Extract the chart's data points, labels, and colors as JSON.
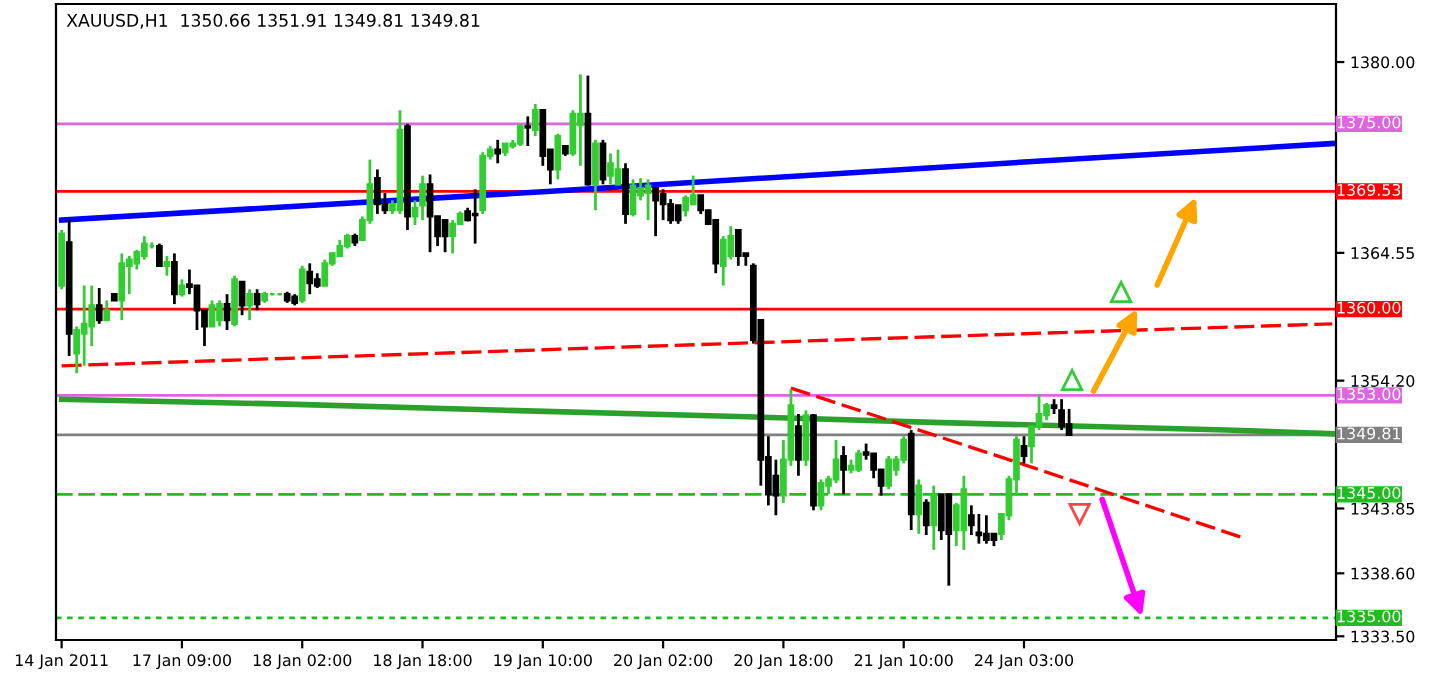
{
  "chart_data": {
    "type": "candlestick",
    "title": "XAUUSD,H1  1350.66 1351.91 1349.81 1349.81",
    "categories": [
      "14 Jan 2011",
      null,
      null,
      null,
      null,
      null,
      null,
      null,
      null,
      null,
      null,
      null,
      null,
      null,
      null,
      null,
      "17 Jan 09:00",
      null,
      null,
      null,
      null,
      null,
      null,
      null,
      null,
      null,
      null,
      null,
      null,
      null,
      null,
      null,
      "18 Jan 02:00",
      null,
      null,
      null,
      null,
      null,
      null,
      null,
      null,
      null,
      null,
      null,
      null,
      null,
      null,
      null,
      "18 Jan 18:00",
      null,
      null,
      null,
      null,
      null,
      null,
      null,
      null,
      null,
      null,
      null,
      null,
      null,
      null,
      null,
      "19 Jan 10:00",
      null,
      null,
      null,
      null,
      null,
      null,
      null,
      null,
      null,
      null,
      null,
      null,
      null,
      null,
      null,
      "20 Jan 02:00",
      null,
      null,
      null,
      null,
      null,
      null,
      null,
      null,
      null,
      null,
      null,
      null,
      null,
      null,
      null,
      "20 Jan 18:00",
      null,
      null,
      null,
      null,
      null,
      null,
      null,
      null,
      null,
      null,
      null,
      null,
      null,
      null,
      null,
      "21 Jan 10:00",
      null,
      null,
      null,
      null,
      null,
      null,
      null,
      null,
      null,
      null,
      null,
      null,
      null,
      null,
      null,
      "24 Jan 03:00",
      null,
      null,
      null,
      null,
      null,
      null,
      null,
      null,
      null,
      null,
      null,
      null,
      null,
      null,
      null,
      null,
      null,
      null,
      null,
      null,
      null,
      null,
      null,
      null,
      null,
      null,
      null,
      null,
      null,
      null,
      null,
      null,
      null,
      null,
      null,
      null,
      null,
      null,
      null,
      null,
      null
    ],
    "ohlc": [
      [
        1361.9,
        1366.4,
        1361.6,
        1366.1
      ],
      [
        1365.4,
        1367.2,
        1356.2,
        1358.0
      ],
      [
        1356.4,
        1358.6,
        1354.8,
        1358.3
      ],
      [
        1358.0,
        1361.9,
        1355.4,
        1358.8
      ],
      [
        1358.6,
        1361.9,
        1357.0,
        1360.3
      ],
      [
        1360.3,
        1361.7,
        1358.8,
        1359.1
      ],
      [
        1359.1,
        1360.7,
        1359.1,
        1359.9
      ],
      [
        1361.2,
        1361.2,
        1360.7,
        1360.7
      ],
      [
        1360.7,
        1364.5,
        1359.1,
        1363.7
      ],
      [
        1363.5,
        1364.3,
        1361.2,
        1364.0
      ],
      [
        1363.7,
        1364.8,
        1363.2,
        1364.6
      ],
      [
        1364.3,
        1365.9,
        1364.0,
        1365.3
      ],
      [
        1365.1,
        1365.4,
        1364.9,
        1365.1
      ],
      [
        1365.1,
        1365.3,
        1363.5,
        1363.5
      ],
      [
        1363.5,
        1364.3,
        1362.7,
        1363.8
      ],
      [
        1363.8,
        1364.5,
        1360.4,
        1361.2
      ],
      [
        1361.2,
        1362.4,
        1361.0,
        1361.9
      ],
      [
        1362.0,
        1363.2,
        1361.2,
        1361.8
      ],
      [
        1361.9,
        1361.9,
        1358.3,
        1359.9
      ],
      [
        1359.9,
        1359.9,
        1357.0,
        1358.6
      ],
      [
        1358.6,
        1360.7,
        1358.6,
        1360.3
      ],
      [
        1359.1,
        1360.7,
        1358.6,
        1360.4
      ],
      [
        1360.4,
        1361.2,
        1358.3,
        1359.1
      ],
      [
        1358.8,
        1362.7,
        1358.6,
        1362.4
      ],
      [
        1362.2,
        1362.2,
        1359.5,
        1360.3
      ],
      [
        1360.3,
        1361.6,
        1359.1,
        1361.2
      ],
      [
        1361.2,
        1361.6,
        1359.9,
        1360.4
      ],
      [
        1360.7,
        1361.4,
        1360.5,
        1361.2
      ],
      [
        1361.2,
        1361.3,
        1361.1,
        1361.2
      ],
      [
        1361.2,
        1361.3,
        1361.1,
        1361.2
      ],
      [
        1361.2,
        1361.4,
        1360.5,
        1360.7
      ],
      [
        1361.0,
        1361.2,
        1360.3,
        1360.5
      ],
      [
        1360.7,
        1363.5,
        1360.5,
        1363.2
      ],
      [
        1363.0,
        1363.7,
        1361.2,
        1362.1
      ],
      [
        1362.4,
        1362.9,
        1361.7,
        1361.9
      ],
      [
        1361.9,
        1364.0,
        1361.9,
        1363.7
      ],
      [
        1363.7,
        1364.6,
        1363.5,
        1364.5
      ],
      [
        1364.3,
        1365.6,
        1364.2,
        1365.1
      ],
      [
        1365.1,
        1366.1,
        1364.9,
        1365.9
      ],
      [
        1365.9,
        1366.1,
        1365.1,
        1365.4
      ],
      [
        1365.6,
        1367.5,
        1365.6,
        1367.2
      ],
      [
        1367.2,
        1372.1,
        1366.9,
        1370.1
      ],
      [
        1370.6,
        1371.3,
        1367.7,
        1368.5
      ],
      [
        1368.5,
        1369.4,
        1367.7,
        1368.0
      ],
      [
        1368.0,
        1368.8,
        1367.7,
        1368.5
      ],
      [
        1368.0,
        1376.1,
        1367.7,
        1374.5
      ],
      [
        1374.8,
        1375.0,
        1366.4,
        1367.5
      ],
      [
        1367.5,
        1368.8,
        1366.8,
        1368.2
      ],
      [
        1368.4,
        1370.8,
        1367.2,
        1370.1
      ],
      [
        1370.1,
        1370.9,
        1364.6,
        1367.5
      ],
      [
        1367.5,
        1367.5,
        1365.1,
        1365.9
      ],
      [
        1367.2,
        1367.2,
        1364.6,
        1365.9
      ],
      [
        1365.9,
        1367.2,
        1364.5,
        1366.9
      ],
      [
        1366.9,
        1367.9,
        1366.8,
        1367.7
      ],
      [
        1367.9,
        1368.2,
        1367.1,
        1367.2
      ],
      [
        1367.7,
        1369.7,
        1365.3,
        1367.6
      ],
      [
        1368.0,
        1372.7,
        1367.7,
        1372.4
      ],
      [
        1372.4,
        1373.2,
        1372.1,
        1372.9
      ],
      [
        1372.9,
        1373.7,
        1371.8,
        1372.6
      ],
      [
        1372.7,
        1373.4,
        1372.4,
        1373.4
      ],
      [
        1373.2,
        1373.7,
        1373.0,
        1373.4
      ],
      [
        1373.4,
        1375.0,
        1373.2,
        1374.8
      ],
      [
        1374.8,
        1375.6,
        1373.2,
        1374.7
      ],
      [
        1374.5,
        1376.6,
        1374.0,
        1376.1
      ],
      [
        1376.1,
        1376.1,
        1371.6,
        1372.4
      ],
      [
        1372.9,
        1372.9,
        1370.1,
        1371.3
      ],
      [
        1371.3,
        1374.2,
        1370.5,
        1374.0
      ],
      [
        1373.2,
        1373.2,
        1372.4,
        1372.6
      ],
      [
        1372.6,
        1376.1,
        1372.4,
        1375.8
      ],
      [
        1374.9,
        1379.0,
        1371.6,
        1375.8
      ],
      [
        1375.8,
        1378.9,
        1370.0,
        1370.1
      ],
      [
        1370.1,
        1373.7,
        1368.0,
        1373.4
      ],
      [
        1373.4,
        1373.7,
        1370.1,
        1370.5
      ],
      [
        1370.8,
        1372.6,
        1370.1,
        1371.8
      ],
      [
        1370.1,
        1372.9,
        1370.0,
        1371.3
      ],
      [
        1371.3,
        1371.8,
        1366.9,
        1367.7
      ],
      [
        1367.7,
        1370.5,
        1367.5,
        1370.0
      ],
      [
        1369.2,
        1370.6,
        1368.8,
        1369.8
      ],
      [
        1369.4,
        1370.5,
        1367.2,
        1370.0
      ],
      [
        1369.8,
        1369.8,
        1365.9,
        1368.8
      ],
      [
        1369.3,
        1369.7,
        1367.2,
        1368.5
      ],
      [
        1368.5,
        1368.9,
        1366.9,
        1367.2
      ],
      [
        1368.4,
        1368.4,
        1366.9,
        1367.2
      ],
      [
        1368.0,
        1369.2,
        1367.5,
        1369.0
      ],
      [
        1368.5,
        1370.8,
        1368.4,
        1369.2
      ],
      [
        1369.2,
        1369.2,
        1367.7,
        1368.0
      ],
      [
        1368.0,
        1368.0,
        1366.8,
        1366.9
      ],
      [
        1367.2,
        1367.2,
        1362.9,
        1363.7
      ],
      [
        1363.5,
        1365.9,
        1361.9,
        1365.6
      ],
      [
        1364.3,
        1366.7,
        1364.0,
        1365.9
      ],
      [
        1366.4,
        1366.4,
        1363.5,
        1364.3
      ],
      [
        1364.5,
        1364.5,
        1363.5,
        1364.3
      ],
      [
        1363.5,
        1363.7,
        1357.2,
        1357.5
      ],
      [
        1359.1,
        1359.1,
        1345.7,
        1347.8
      ],
      [
        1348.0,
        1349.7,
        1344.1,
        1345.0
      ],
      [
        1346.5,
        1347.8,
        1343.3,
        1344.9
      ],
      [
        1344.9,
        1349.4,
        1344.3,
        1347.8
      ],
      [
        1347.8,
        1353.5,
        1347.3,
        1352.2
      ],
      [
        1350.5,
        1351.5,
        1346.5,
        1347.8
      ],
      [
        1347.8,
        1351.8,
        1347.3,
        1351.4
      ],
      [
        1351.4,
        1351.5,
        1343.7,
        1344.1
      ],
      [
        1344.1,
        1346.2,
        1343.7,
        1345.9
      ],
      [
        1345.7,
        1346.5,
        1345.0,
        1346.2
      ],
      [
        1346.2,
        1349.4,
        1345.9,
        1347.8
      ],
      [
        1348.1,
        1348.9,
        1345.0,
        1347.0
      ],
      [
        1347.0,
        1347.8,
        1346.7,
        1347.3
      ],
      [
        1347.0,
        1348.6,
        1346.8,
        1348.3
      ],
      [
        1348.4,
        1349.1,
        1347.8,
        1348.2
      ],
      [
        1348.3,
        1348.3,
        1346.3,
        1347.0
      ],
      [
        1347.0,
        1347.0,
        1344.9,
        1345.7
      ],
      [
        1345.7,
        1348.1,
        1345.4,
        1347.8
      ],
      [
        1347.0,
        1348.1,
        1346.5,
        1347.8
      ],
      [
        1347.8,
        1349.7,
        1347.5,
        1349.4
      ],
      [
        1349.9,
        1350.2,
        1342.1,
        1343.4
      ],
      [
        1343.4,
        1346.2,
        1341.8,
        1345.7
      ],
      [
        1344.3,
        1344.6,
        1341.7,
        1342.5
      ],
      [
        1342.5,
        1345.7,
        1340.5,
        1345.0
      ],
      [
        1345.0,
        1345.0,
        1341.3,
        1342.1
      ],
      [
        1345.0,
        1345.0,
        1337.6,
        1341.8
      ],
      [
        1342.1,
        1344.3,
        1340.8,
        1344.1
      ],
      [
        1342.1,
        1346.5,
        1340.5,
        1345.4
      ],
      [
        1343.3,
        1344.1,
        1341.7,
        1342.5
      ],
      [
        1341.9,
        1343.4,
        1341.0,
        1341.7
      ],
      [
        1341.8,
        1343.3,
        1341.0,
        1341.3
      ],
      [
        1341.8,
        1341.8,
        1340.8,
        1341.3
      ],
      [
        1341.8,
        1343.4,
        1341.3,
        1343.4
      ],
      [
        1343.3,
        1346.5,
        1342.9,
        1346.2
      ],
      [
        1346.2,
        1349.7,
        1344.9,
        1349.4
      ],
      [
        1348.9,
        1349.7,
        1347.5,
        1348.1
      ],
      [
        1348.9,
        1350.5,
        1347.5,
        1350.5
      ],
      [
        1350.5,
        1353.1,
        1350.2,
        1351.5
      ],
      [
        1351.4,
        1352.4,
        1351.0,
        1352.2
      ],
      [
        1352.2,
        1352.7,
        1351.5,
        1352.0
      ],
      [
        1351.8,
        1352.7,
        1350.2,
        1350.5
      ],
      [
        1350.66,
        1351.91,
        1349.81,
        1349.81
      ],
      null,
      null,
      null,
      null,
      null,
      null,
      null,
      null,
      null,
      null,
      null,
      null,
      null,
      null,
      null,
      null,
      null,
      null,
      null,
      null,
      null,
      null,
      null,
      null,
      null,
      null,
      null,
      null,
      null,
      null,
      null,
      null,
      null,
      null,
      null
    ],
    "colors": [
      "#33cc33",
      "#000000",
      "#33cc33",
      "#33cc33",
      "#33cc33",
      "#000000",
      "#33cc33",
      "#000000",
      "#33cc33",
      "#33cc33",
      "#33cc33",
      "#33cc33",
      "#33cc33",
      "#000000",
      "#33cc33",
      "#000000",
      "#33cc33",
      "#000000",
      "#000000",
      "#000000",
      "#33cc33",
      "#33cc33",
      "#000000",
      "#33cc33",
      "#000000",
      "#33cc33",
      "#000000",
      "#33cc33",
      "#33cc33",
      "#33cc33",
      "#000000",
      "#000000",
      "#33cc33",
      "#000000",
      "#000000",
      "#33cc33",
      "#33cc33",
      "#33cc33",
      "#33cc33",
      "#000000",
      "#33cc33",
      "#33cc33",
      "#000000",
      "#000000",
      "#33cc33",
      "#33cc33",
      "#000000",
      "#33cc33",
      "#33cc33",
      "#000000",
      "#000000",
      "#000000",
      "#33cc33",
      "#33cc33",
      "#000000",
      "#000000",
      "#33cc33",
      "#33cc33",
      "#000000",
      "#33cc33",
      "#33cc33",
      "#33cc33",
      "#000000",
      "#33cc33",
      "#000000",
      "#000000",
      "#33cc33",
      "#000000",
      "#33cc33",
      "#33cc33",
      "#000000",
      "#33cc33",
      "#000000",
      "#33cc33",
      "#33cc33",
      "#000000",
      "#33cc33",
      "#33cc33",
      "#33cc33",
      "#000000",
      "#000000",
      "#000000",
      "#000000",
      "#33cc33",
      "#33cc33",
      "#000000",
      "#000000",
      "#000000",
      "#33cc33",
      "#33cc33",
      "#000000",
      "#000000",
      "#000000",
      "#000000",
      "#000000",
      "#000000",
      "#33cc33",
      "#33cc33",
      "#000000",
      "#33cc33",
      "#000000",
      "#33cc33",
      "#33cc33",
      "#33cc33",
      "#000000",
      "#33cc33",
      "#33cc33",
      "#000000",
      "#000000",
      "#000000",
      "#33cc33",
      "#33cc33",
      "#33cc33",
      "#000000",
      "#33cc33",
      "#000000",
      "#33cc33",
      "#000000",
      "#000000",
      "#33cc33",
      "#33cc33",
      "#000000",
      "#000000",
      "#000000",
      "#000000",
      "#33cc33",
      "#33cc33",
      "#33cc33",
      "#000000",
      "#33cc33",
      "#33cc33",
      "#33cc33",
      "#000000",
      "#000000",
      "#000000",
      null,
      null,
      null,
      null,
      null,
      null,
      null,
      null,
      null,
      null,
      null,
      null,
      null,
      null,
      null,
      null,
      null,
      null,
      null,
      null,
      null,
      null,
      null,
      null,
      null,
      null,
      null,
      null,
      null,
      null,
      null,
      null,
      null,
      null,
      null
    ],
    "series": [
      {
        "type": "line",
        "color": "#2ca02c",
        "line_style": "solid",
        "values": [
          1352.7,
          null,
          null,
          null,
          null,
          null,
          null,
          null,
          null,
          null,
          null,
          null,
          null,
          null,
          null,
          null,
          null,
          null,
          null,
          null,
          null,
          null,
          null,
          null,
          null,
          null,
          null,
          null,
          null,
          null,
          1352.3,
          null,
          null,
          null,
          null,
          null,
          null,
          null,
          null,
          null,
          null,
          null,
          null,
          null,
          null,
          null,
          null,
          null,
          null,
          null,
          null,
          null,
          null,
          null,
          null,
          null,
          null,
          null,
          null,
          1351.8,
          null,
          null,
          null,
          null,
          null,
          null,
          null,
          null,
          null,
          null,
          null,
          null,
          null,
          null,
          null,
          null,
          null,
          null,
          null,
          null,
          null,
          null,
          null,
          null,
          null,
          null,
          null,
          null,
          null,
          null,
          1351.3,
          null,
          null,
          null,
          null,
          null,
          null,
          null,
          null,
          null,
          null,
          null,
          null,
          null,
          null,
          null,
          null,
          null,
          null,
          null,
          null,
          null,
          null,
          null,
          null,
          null,
          null,
          1350.8,
          null,
          null,
          null,
          null,
          null,
          null,
          null,
          null,
          null,
          null,
          null,
          null,
          null,
          null,
          null,
          null,
          null,
          null,
          null,
          null,
          null,
          null,
          null,
          null,
          null,
          null,
          null,
          null,
          null,
          null,
          null,
          null,
          null,
          null,
          null,
          null,
          null,
          1350.2,
          null,
          null,
          null,
          null,
          null,
          null,
          null,
          null,
          null,
          null,
          null,
          null,
          null,
          1349.9
        ]
      },
      {
        "type": "line",
        "color": "#0000ff",
        "line_style": "solid",
        "values": [
          1367.2,
          null,
          null,
          null,
          null,
          null,
          null,
          null,
          null,
          null,
          null,
          null,
          null,
          null,
          null,
          null,
          null,
          null,
          null,
          null,
          null,
          null,
          null,
          null,
          null,
          null,
          null,
          null,
          null,
          null,
          null,
          null,
          null,
          null,
          null,
          null,
          null,
          null,
          null,
          null,
          null,
          null,
          null,
          null,
          null,
          null,
          null,
          null,
          null,
          null,
          null,
          null,
          null,
          null,
          null,
          null,
          null,
          null,
          null,
          null,
          null,
          null,
          null,
          null,
          1369.5,
          null,
          null,
          null,
          null,
          null,
          null,
          null,
          null,
          null,
          null,
          null,
          null,
          null,
          null,
          null,
          null,
          null,
          null,
          null,
          null,
          null,
          null,
          null,
          null,
          null,
          null,
          null,
          null,
          null,
          null,
          null,
          null,
          null,
          null,
          null,
          null,
          null,
          null,
          null,
          null,
          null,
          null,
          null,
          null,
          null,
          null,
          null,
          null,
          null,
          null,
          null,
          null,
          null,
          null,
          null,
          null,
          null,
          null,
          null,
          null,
          null,
          null,
          null,
          1371.9,
          null,
          null,
          null,
          null,
          null,
          null,
          null,
          null,
          null,
          null,
          null,
          null,
          null,
          null,
          null,
          null,
          null,
          null,
          null,
          null,
          null,
          null,
          null,
          null,
          null,
          null,
          null,
          null,
          null,
          null,
          null,
          null,
          null,
          null,
          null,
          null,
          null,
          null,
          null,
          null,
          1373.4
        ]
      },
      {
        "type": "line",
        "color": "#ff0000",
        "line_style": "dashed",
        "values": [
          1355.4,
          null,
          null,
          null,
          null,
          null,
          null,
          null,
          null,
          null,
          null,
          null,
          null,
          null,
          null,
          null,
          null,
          null,
          null,
          null,
          null,
          null,
          null,
          null,
          null,
          null,
          null,
          null,
          null,
          null,
          null,
          null,
          null,
          null,
          null,
          null,
          null,
          null,
          null,
          null,
          null,
          null,
          null,
          null,
          null,
          null,
          null,
          null,
          null,
          null,
          null,
          null,
          null,
          null,
          null,
          null,
          null,
          null,
          null,
          null,
          null,
          null,
          null,
          null,
          1356.7,
          null,
          null,
          null,
          null,
          null,
          null,
          null,
          null,
          null,
          null,
          null,
          null,
          null,
          null,
          null,
          null,
          null,
          null,
          null,
          null,
          null,
          null,
          null,
          null,
          null,
          null,
          null,
          null,
          null,
          null,
          null,
          null,
          null,
          null,
          null,
          null,
          null,
          null,
          null,
          null,
          null,
          null,
          null,
          null,
          null,
          null,
          null,
          null,
          null,
          null,
          null,
          null,
          null,
          null,
          null,
          null,
          null,
          null,
          null,
          null,
          null,
          null,
          null,
          1358.0,
          null,
          null,
          null,
          null,
          null,
          null,
          null,
          null,
          null,
          null,
          null,
          null,
          null,
          null,
          null,
          null,
          null,
          null,
          null,
          null,
          null,
          null,
          null,
          null,
          null,
          null,
          null,
          null,
          null,
          null,
          null,
          null,
          null,
          null,
          null,
          null,
          null,
          null,
          null,
          null,
          1358.8
        ]
      },
      {
        "type": "line",
        "color": "#ff0000",
        "line_style": "dashed",
        "values": [
          null,
          null,
          null,
          null,
          null,
          null,
          null,
          null,
          null,
          null,
          null,
          null,
          null,
          null,
          null,
          null,
          null,
          null,
          null,
          null,
          null,
          null,
          null,
          null,
          null,
          null,
          null,
          null,
          null,
          null,
          null,
          null,
          null,
          null,
          null,
          null,
          null,
          null,
          null,
          null,
          null,
          null,
          null,
          null,
          null,
          null,
          null,
          null,
          null,
          null,
          null,
          null,
          null,
          null,
          null,
          null,
          null,
          null,
          null,
          null,
          null,
          null,
          null,
          null,
          null,
          null,
          null,
          null,
          null,
          null,
          null,
          null,
          null,
          null,
          null,
          null,
          null,
          null,
          null,
          null,
          null,
          null,
          null,
          null,
          null,
          null,
          null,
          null,
          null,
          null,
          null,
          null,
          null,
          null,
          null,
          null,
          null,
          1353.6,
          null,
          null,
          null,
          null,
          null,
          null,
          null,
          null,
          null,
          null,
          null,
          null,
          null,
          null,
          null,
          null,
          null,
          null,
          null,
          null,
          null,
          null,
          null,
          null,
          null,
          null,
          null,
          null,
          null,
          null,
          null,
          1347.2,
          null,
          null,
          null,
          null,
          null,
          null,
          null,
          null,
          null,
          null,
          null,
          null,
          null,
          null,
          null,
          null,
          null,
          null,
          null,
          null,
          null,
          null,
          null,
          null,
          null,
          null,
          null,
          1341.5,
          null,
          null,
          null,
          null,
          null,
          null,
          null,
          null,
          null,
          null,
          null,
          null
        ]
      }
    ],
    "ref_lines": [
      {
        "axis": "y",
        "value": 1375.0,
        "label": "1375.00",
        "color": "#dd66dd",
        "line_style": "solid"
      },
      {
        "axis": "y",
        "value": 1369.53,
        "label": "1369.53",
        "color": "#ff0000",
        "line_style": "solid"
      },
      {
        "axis": "y",
        "value": 1360.0,
        "label": "1360.00",
        "color": "#ff0000",
        "line_style": "solid"
      },
      {
        "axis": "y",
        "value": 1353.0,
        "label": "1353.00",
        "color": "#dd66dd",
        "line_style": "solid"
      },
      {
        "axis": "y",
        "value": 1349.81,
        "label": "1349.81",
        "color": "#808080",
        "line_style": "solid"
      },
      {
        "axis": "y",
        "value": 1345.0,
        "label": "1345.00",
        "color": "#22bb22",
        "line_style": "dashed"
      },
      {
        "axis": "y",
        "value": 1335.0,
        "label": "1335.00",
        "color": "#22bb22",
        "line_style": "dotted"
      }
    ],
    "ylim": [
      1333.2,
      1384.7
    ],
    "yticks": [
      {
        "value": 1380,
        "label": "1380.00"
      },
      {
        "value": 1364.55,
        "label": "1364.55"
      },
      {
        "value": 1354.2,
        "label": "1354.20"
      },
      {
        "value": 1343.85,
        "label": "1343.85"
      },
      {
        "value": 1338.6,
        "label": "1338.60"
      },
      {
        "value": 1333.5,
        "label": "1333.50"
      }
    ]
  }
}
